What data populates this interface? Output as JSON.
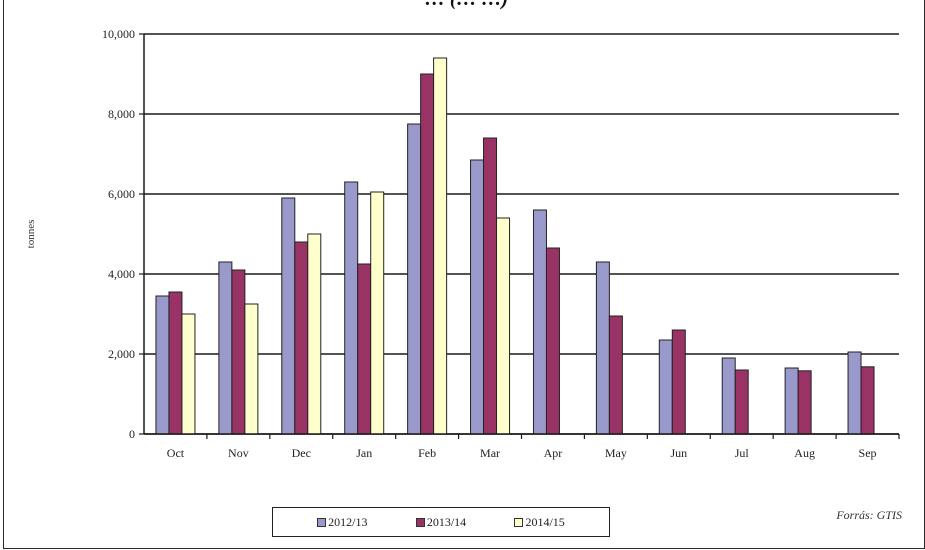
{
  "title": "… (… …)",
  "source": "Forrás: GTIS",
  "chart_data": {
    "type": "bar",
    "title": "",
    "xlabel": "",
    "ylabel": "tonnes",
    "ylim": [
      0,
      10000
    ],
    "yticks": [
      0,
      2000,
      4000,
      6000,
      8000,
      10000
    ],
    "ytick_labels": [
      "0",
      "2,000",
      "4,000",
      "6,000",
      "8,000",
      "10,000"
    ],
    "grid": true,
    "legend_position": "bottom-center",
    "categories": [
      "Oct",
      "Nov",
      "Dec",
      "Jan",
      "Feb",
      "Mar",
      "Apr",
      "May",
      "Jun",
      "Jul",
      "Aug",
      "Sep"
    ],
    "series": [
      {
        "name": "2012/13",
        "color": "#9999cc",
        "values": [
          3450,
          4300,
          5900,
          6300,
          7750,
          6850,
          5600,
          4300,
          2350,
          1900,
          1650,
          2050
        ]
      },
      {
        "name": "2013/14",
        "color": "#993366",
        "values": [
          3550,
          4100,
          4800,
          4250,
          9000,
          7400,
          4650,
          2950,
          2600,
          1600,
          1580,
          1680
        ]
      },
      {
        "name": "2014/15",
        "color": "#ffffcc",
        "values": [
          3000,
          3250,
          5000,
          6050,
          9400,
          5400,
          null,
          null,
          null,
          null,
          null,
          null
        ]
      }
    ]
  }
}
